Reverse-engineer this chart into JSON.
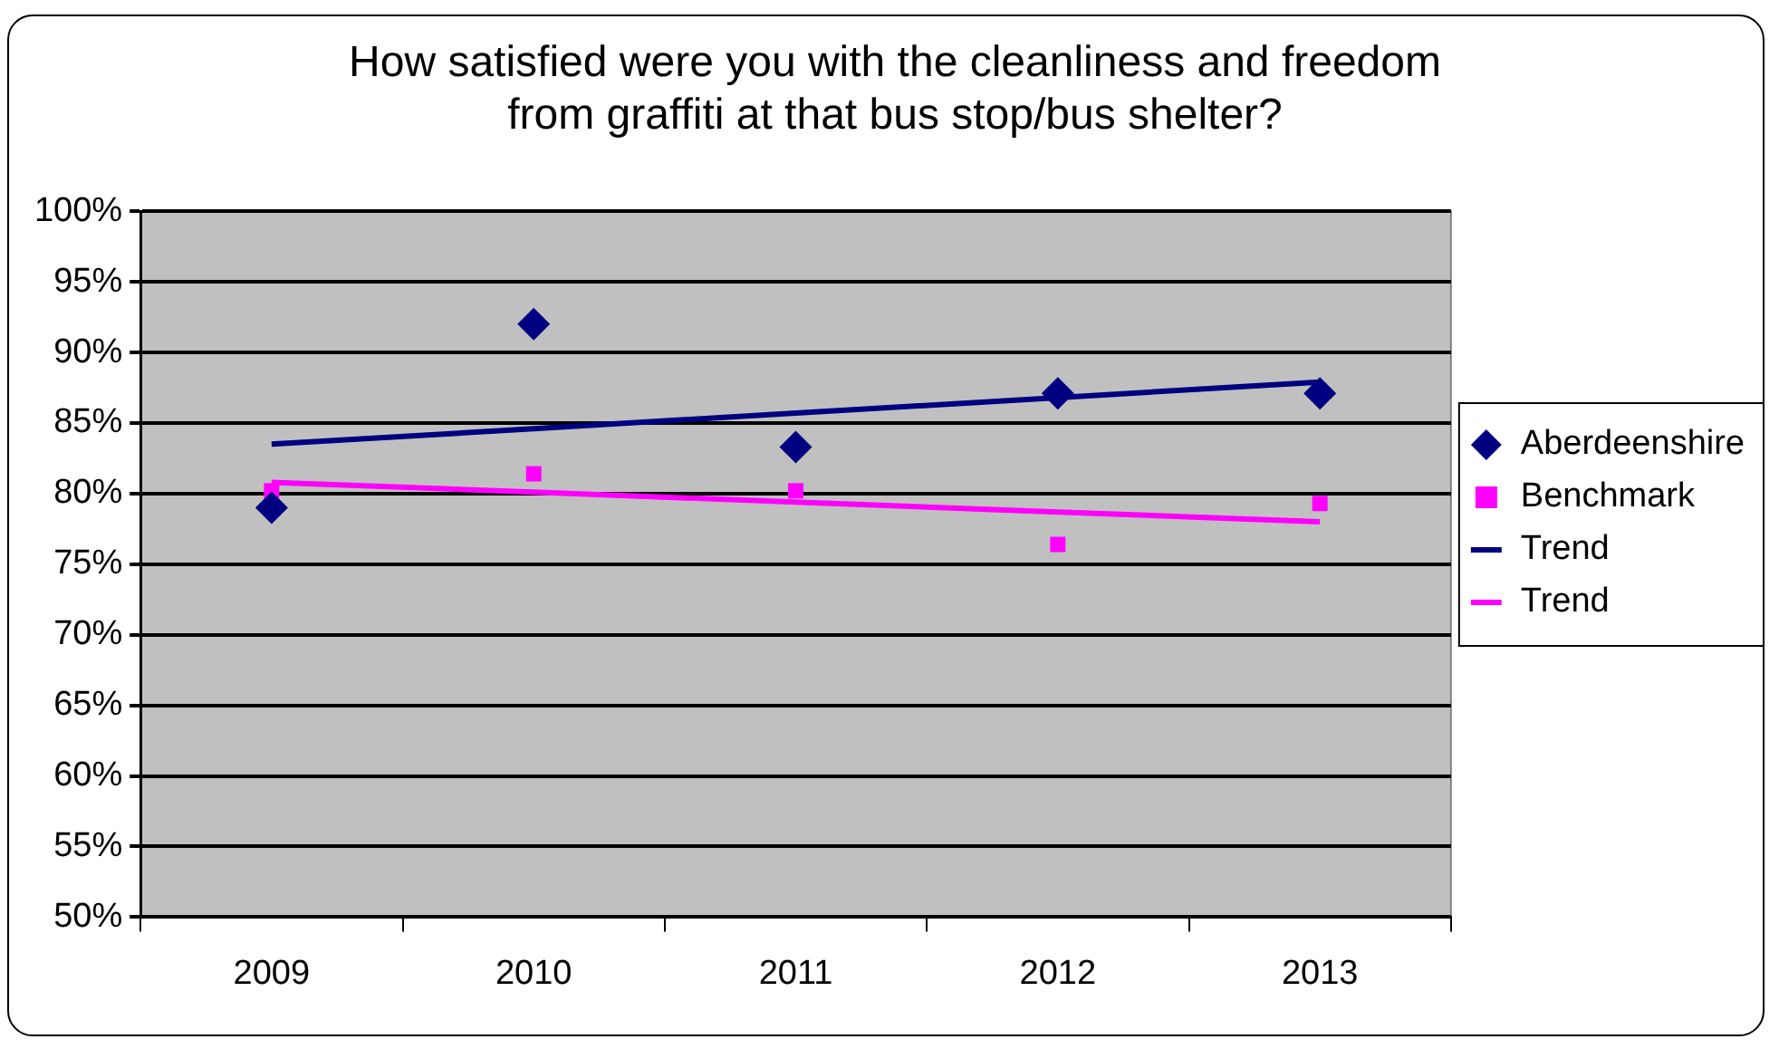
{
  "chart_data": {
    "type": "scatter",
    "title": "How satisfied were you with the cleanliness and freedom from graffiti at that bus stop/bus shelter?",
    "categories": [
      "2009",
      "2010",
      "2011",
      "2012",
      "2013"
    ],
    "series": [
      {
        "name": "Aberdeenshire",
        "color": "#000080",
        "marker": "diamond",
        "values": [
          79,
          92,
          83.3,
          87.1,
          87.1
        ]
      },
      {
        "name": "Benchmark",
        "color": "#ff00ff",
        "marker": "square",
        "values": [
          80.2,
          81.4,
          80.2,
          76.4,
          79.3
        ]
      },
      {
        "name": "Trend",
        "type": "line",
        "color": "#000080",
        "marker": "none",
        "values": [
          83.5,
          84.6,
          85.7,
          86.8,
          87.9
        ]
      },
      {
        "name": "Trend",
        "type": "line",
        "color": "#ff00ff",
        "marker": "none",
        "values": [
          80.8,
          80.1,
          79.4,
          78.7,
          78.0
        ]
      }
    ],
    "ylim": [
      50,
      100
    ],
    "yticks": [
      {
        "value": 50,
        "label": "50%"
      },
      {
        "value": 55,
        "label": "55%"
      },
      {
        "value": 60,
        "label": "60%"
      },
      {
        "value": 65,
        "label": "65%"
      },
      {
        "value": 70,
        "label": "70%"
      },
      {
        "value": 75,
        "label": "75%"
      },
      {
        "value": 80,
        "label": "80%"
      },
      {
        "value": 85,
        "label": "85%"
      },
      {
        "value": 90,
        "label": "90%"
      },
      {
        "value": 95,
        "label": "95%"
      },
      {
        "value": 100,
        "label": "100%"
      }
    ],
    "grid": "y",
    "legend": "right"
  }
}
